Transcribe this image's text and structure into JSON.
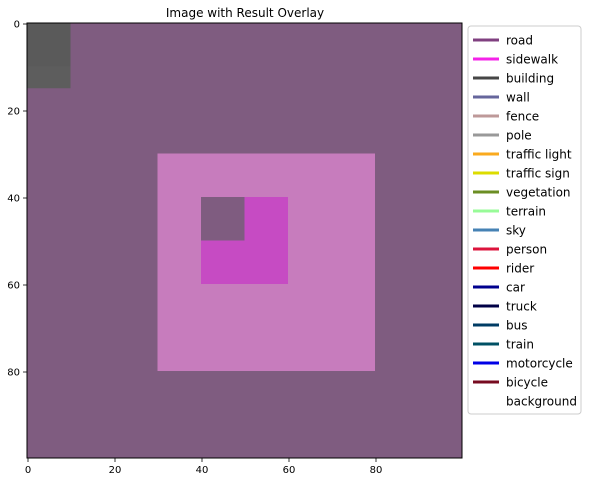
{
  "chart_data": {
    "type": "heatmap",
    "title": "Image with Result Overlay",
    "xlabel": "",
    "ylabel": "",
    "xlim": [
      0,
      100
    ],
    "ylim": [
      100,
      0
    ],
    "x_ticks": [
      0,
      20,
      40,
      60,
      80
    ],
    "y_ticks": [
      0,
      20,
      40,
      60,
      80
    ],
    "grid": false,
    "legend_position": "right",
    "background_color": "#7f5c80",
    "regions": [
      {
        "label": "building",
        "x": [
          0,
          10
        ],
        "y": [
          0,
          10
        ],
        "color": "#5a5a5a"
      },
      {
        "label": "building",
        "x": [
          0,
          10
        ],
        "y": [
          10,
          15
        ],
        "color": "#5d5d5d"
      },
      {
        "label": "sidewalk",
        "x": [
          30,
          80
        ],
        "y": [
          30,
          80
        ],
        "color": "#c77cbd"
      },
      {
        "label": "sidewalk",
        "x": [
          40,
          60
        ],
        "y": [
          40,
          60
        ],
        "color": "#c64bc3"
      },
      {
        "label": "road",
        "x": [
          40,
          50
        ],
        "y": [
          40,
          50
        ],
        "color": "#7f5c80"
      }
    ],
    "legend": [
      {
        "label": "road",
        "color": "#804080"
      },
      {
        "label": "sidewalk",
        "color": "#f423e8"
      },
      {
        "label": "building",
        "color": "#464646"
      },
      {
        "label": "wall",
        "color": "#66669c"
      },
      {
        "label": "fence",
        "color": "#be9999"
      },
      {
        "label": "pole",
        "color": "#999999"
      },
      {
        "label": "traffic light",
        "color": "#faaa1e"
      },
      {
        "label": "traffic sign",
        "color": "#dcdc00"
      },
      {
        "label": "vegetation",
        "color": "#6b8e23"
      },
      {
        "label": "terrain",
        "color": "#98fb98"
      },
      {
        "label": "sky",
        "color": "#4682b4"
      },
      {
        "label": "person",
        "color": "#dc143c"
      },
      {
        "label": "rider",
        "color": "#ff0000"
      },
      {
        "label": "car",
        "color": "#00008e"
      },
      {
        "label": "truck",
        "color": "#000046"
      },
      {
        "label": "bus",
        "color": "#003c64"
      },
      {
        "label": "train",
        "color": "#005064"
      },
      {
        "label": "motorcycle",
        "color": "#0000e6"
      },
      {
        "label": "bicycle",
        "color": "#770b20"
      },
      {
        "label": "background",
        "color": "#ffffff"
      }
    ]
  }
}
